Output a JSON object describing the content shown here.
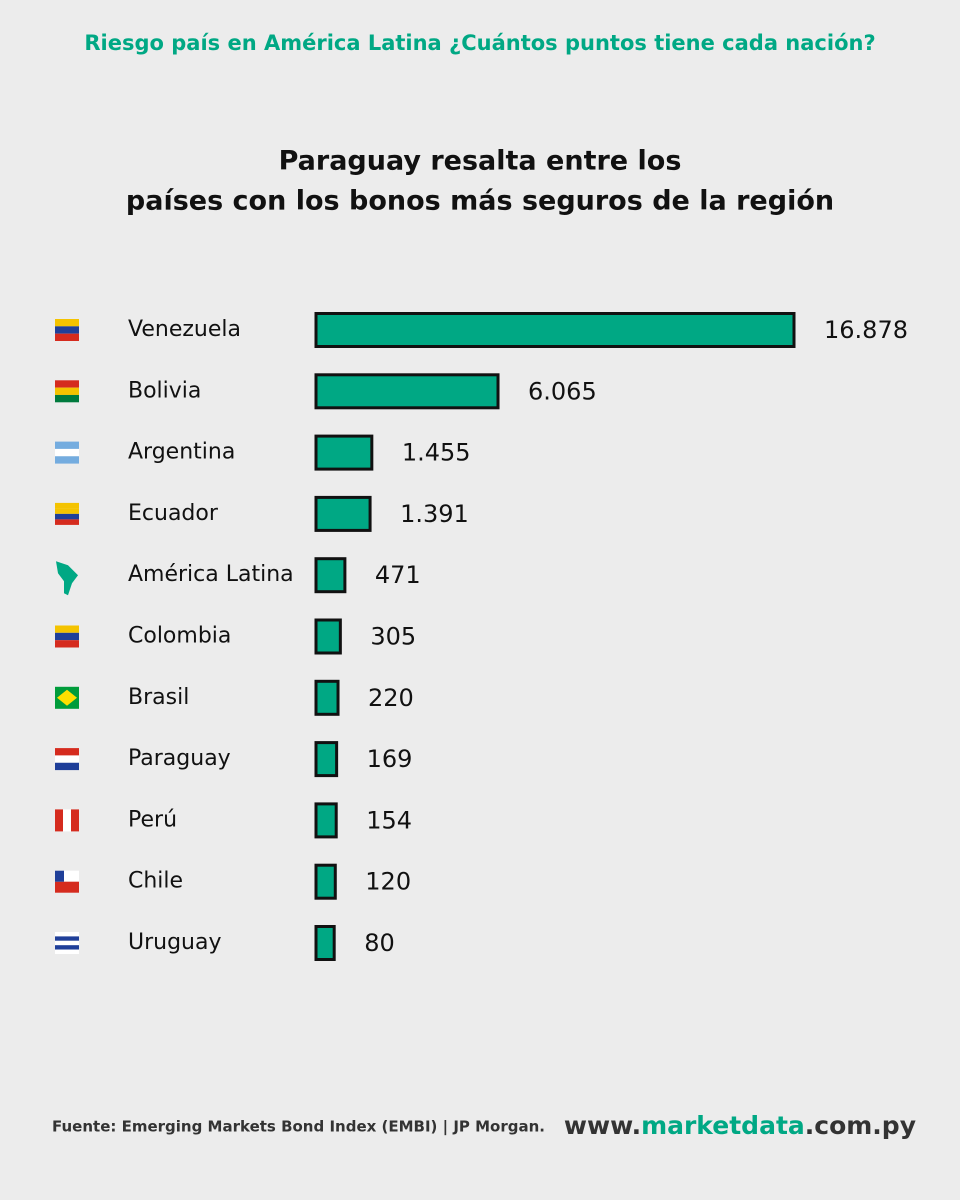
{
  "chart_data": {
    "type": "bar",
    "orientation": "horizontal",
    "header": "Riesgo país en América Latina ¿Cuántos puntos tiene cada nación?",
    "title": [
      "Paraguay resalta entre los",
      "países con los bonos más seguros de la región"
    ],
    "categories": [
      "Venezuela",
      "Bolivia",
      "Argentina",
      "Ecuador",
      "América Latina",
      "Colombia",
      "Brasil",
      "Paraguay",
      "Perú",
      "Chile",
      "Uruguay"
    ],
    "values": [
      16878,
      6065,
      1455,
      1391,
      471,
      305,
      220,
      169,
      154,
      120,
      80
    ],
    "value_labels": [
      "16.878",
      "6.065",
      "1.455",
      "1.391",
      "471",
      "305",
      "220",
      "169",
      "154",
      "120",
      "80"
    ],
    "color": "#00a884",
    "source": "Fuente: Emerging Markets Bond Index (EMBI) | JP Morgan.",
    "website": [
      "www.",
      "marketdata",
      ".com.py"
    ]
  }
}
